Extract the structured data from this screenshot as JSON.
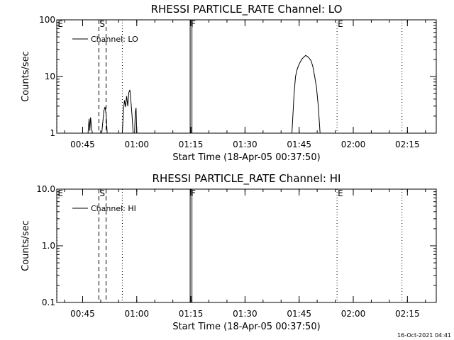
{
  "chart_data": [
    {
      "type": "line",
      "title": "RHESSI PARTICLE_RATE Channel: LO",
      "xlabel": "Start Time (18-Apr-05 00:37:50)",
      "ylabel": "Counts/sec",
      "xlim_min": [
        37.83,
        143
      ],
      "ylim": [
        1,
        100
      ],
      "yscale": "log",
      "x_ticks": [
        45,
        60,
        75,
        90,
        105,
        120,
        135
      ],
      "x_tick_labels": [
        "00:45",
        "01:00",
        "01:15",
        "01:30",
        "01:45",
        "02:00",
        "02:15"
      ],
      "y_ticks": [
        1,
        10,
        100
      ],
      "y_tick_labels": [
        "1",
        "10",
        "100"
      ],
      "legend": {
        "label": "Channel: LO",
        "placement": "top-left"
      },
      "markers": [
        {
          "label": "E",
          "x": 37.9,
          "style": "dotted"
        },
        {
          "label": "S",
          "x": 49.5,
          "style": "dashed"
        },
        {
          "label": "",
          "x": 51.5,
          "style": "dashed"
        },
        {
          "label": "",
          "x": 56.0,
          "style": "dotted"
        },
        {
          "label": "F",
          "x": 74.8,
          "style": "solid"
        },
        {
          "label": "",
          "x": 75.3,
          "style": "solid"
        },
        {
          "label": "E",
          "x": 115.5,
          "style": "dotted"
        },
        {
          "label": "",
          "x": 133.5,
          "style": "dotted"
        }
      ],
      "series": [
        {
          "name": "Channel: LO",
          "segments": [
            [
              [
                46.5,
                1
              ],
              [
                46.8,
                1.8
              ],
              [
                47.0,
                1.1
              ],
              [
                47.2,
                1.9
              ],
              [
                47.5,
                1.2
              ],
              [
                47.7,
                1
              ]
            ],
            [
              [
                50.3,
                1
              ],
              [
                50.6,
                1.6
              ],
              [
                50.9,
                2.5
              ],
              [
                51.2,
                2.9
              ],
              [
                51.5,
                2.2
              ],
              [
                51.8,
                1
              ]
            ],
            [
              [
                56.0,
                1
              ],
              [
                56.3,
                2.5
              ],
              [
                56.6,
                3.8
              ],
              [
                56.9,
                2.9
              ],
              [
                57.2,
                4.5
              ],
              [
                57.5,
                3.0
              ],
              [
                57.8,
                5.2
              ],
              [
                58.1,
                5.8
              ],
              [
                58.4,
                3.6
              ],
              [
                58.7,
                2.0
              ],
              [
                59.0,
                1
              ]
            ],
            [
              [
                59.4,
                1
              ],
              [
                59.6,
                2.3
              ],
              [
                59.8,
                2.8
              ],
              [
                60.0,
                1
              ]
            ],
            [
              [
                103.0,
                1
              ],
              [
                103.6,
                5.0
              ],
              [
                104.0,
                10.0
              ],
              [
                104.4,
                13.0
              ],
              [
                104.8,
                15.5
              ],
              [
                105.3,
                18.0
              ],
              [
                105.8,
                20.5
              ],
              [
                106.3,
                22.0
              ],
              [
                106.8,
                23.5
              ],
              [
                107.3,
                22.5
              ],
              [
                107.8,
                21.0
              ],
              [
                108.3,
                19.0
              ],
              [
                108.8,
                15.0
              ],
              [
                109.3,
                10.0
              ],
              [
                109.8,
                6.5
              ],
              [
                110.3,
                3.0
              ],
              [
                110.8,
                1
              ]
            ]
          ]
        }
      ]
    },
    {
      "type": "line",
      "title": "RHESSI PARTICLE_RATE Channel: HI",
      "xlabel": "Start Time (18-Apr-05 00:37:50)",
      "ylabel": "Counts/sec",
      "xlim_min": [
        37.83,
        143
      ],
      "ylim": [
        0.1,
        10
      ],
      "yscale": "log",
      "x_ticks": [
        45,
        60,
        75,
        90,
        105,
        120,
        135
      ],
      "x_tick_labels": [
        "00:45",
        "01:00",
        "01:15",
        "01:30",
        "01:45",
        "02:00",
        "02:15"
      ],
      "y_ticks": [
        0.1,
        1,
        10
      ],
      "y_tick_labels": [
        "0.1",
        "1.0",
        "10.0"
      ],
      "legend": {
        "label": "Channel: HI",
        "placement": "top-left"
      },
      "markers": [
        {
          "label": "E",
          "x": 37.9,
          "style": "dotted"
        },
        {
          "label": "S",
          "x": 49.5,
          "style": "dashed"
        },
        {
          "label": "",
          "x": 51.5,
          "style": "dashed"
        },
        {
          "label": "",
          "x": 56.0,
          "style": "dotted"
        },
        {
          "label": "F",
          "x": 74.8,
          "style": "solid"
        },
        {
          "label": "",
          "x": 75.3,
          "style": "solid"
        },
        {
          "label": "E",
          "x": 115.5,
          "style": "dotted"
        },
        {
          "label": "",
          "x": 133.5,
          "style": "dotted"
        }
      ],
      "series": [
        {
          "name": "Channel: HI",
          "segments": []
        }
      ]
    }
  ],
  "timestamp": "16-Oct-2021 04:41"
}
